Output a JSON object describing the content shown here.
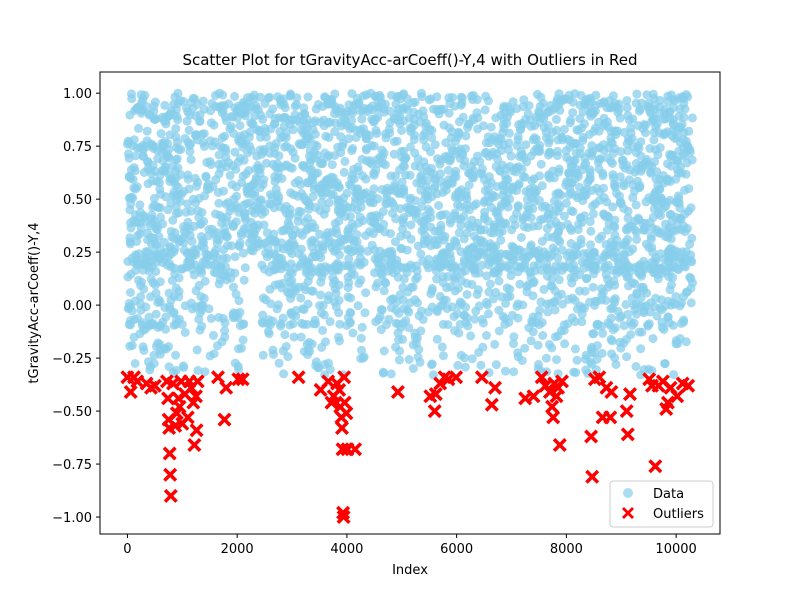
{
  "chart_data": {
    "type": "scatter",
    "title": "Scatter Plot for tGravityAcc-arCoeff()-Y,4 with Outliers in Red",
    "xlabel": "Index",
    "ylabel": "tGravityAcc-arCoeff()-Y,4",
    "xlim": [
      -500,
      10800
    ],
    "ylim": [
      -1.08,
      1.1
    ],
    "xticks": [
      0,
      2000,
      4000,
      6000,
      8000,
      10000
    ],
    "xtick_labels": [
      "0",
      "2000",
      "4000",
      "6000",
      "8000",
      "10000"
    ],
    "yticks": [
      -1.0,
      -0.75,
      -0.5,
      -0.25,
      0.0,
      0.25,
      0.5,
      0.75,
      1.0
    ],
    "ytick_labels": [
      "−1.00",
      "−0.75",
      "−0.50",
      "−0.25",
      "0.00",
      "0.25",
      "0.50",
      "0.75",
      "1.00"
    ],
    "grid": false,
    "legend_position": "lower-right",
    "series": [
      {
        "name": "Data",
        "color": "#87ceeb",
        "marker": "circle",
        "x_range": [
          0,
          10299
        ],
        "y_range": [
          -0.33,
          1.0
        ],
        "description_points": "dense band of ~10000 points, mostly between 0.0 and 1.0, sparser tail down to about -0.33"
      },
      {
        "name": "Outliers",
        "color": "#ff0000",
        "marker": "x",
        "points": [
          [
            0,
            -0.34
          ],
          [
            60,
            -0.41
          ],
          [
            120,
            -0.34
          ],
          [
            180,
            -0.36
          ],
          [
            350,
            -0.37
          ],
          [
            430,
            -0.39
          ],
          [
            500,
            -0.38
          ],
          [
            720,
            -0.36
          ],
          [
            740,
            -0.44
          ],
          [
            750,
            -0.54
          ],
          [
            760,
            -0.58
          ],
          [
            770,
            -0.7
          ],
          [
            780,
            -0.8
          ],
          [
            790,
            -0.9
          ],
          [
            830,
            -0.37
          ],
          [
            870,
            -0.57
          ],
          [
            900,
            -0.51
          ],
          [
            930,
            -0.44
          ],
          [
            950,
            -0.48
          ],
          [
            980,
            -0.36
          ],
          [
            1000,
            -0.56
          ],
          [
            1050,
            -0.42
          ],
          [
            1100,
            -0.53
          ],
          [
            1130,
            -0.36
          ],
          [
            1160,
            -0.39
          ],
          [
            1200,
            -0.46
          ],
          [
            1220,
            -0.66
          ],
          [
            1250,
            -0.43
          ],
          [
            1260,
            -0.59
          ],
          [
            1280,
            -0.36
          ],
          [
            1650,
            -0.34
          ],
          [
            1770,
            -0.54
          ],
          [
            1800,
            -0.39
          ],
          [
            2020,
            -0.35
          ],
          [
            2100,
            -0.35
          ],
          [
            3120,
            -0.34
          ],
          [
            3520,
            -0.4
          ],
          [
            3660,
            -0.36
          ],
          [
            3720,
            -0.46
          ],
          [
            3760,
            -0.43
          ],
          [
            3820,
            -0.37
          ],
          [
            3860,
            -0.4
          ],
          [
            3880,
            -0.48
          ],
          [
            3900,
            -0.53
          ],
          [
            3910,
            -0.58
          ],
          [
            3920,
            -0.68
          ],
          [
            3930,
            -0.98
          ],
          [
            3940,
            -1.0
          ],
          [
            3950,
            -0.34
          ],
          [
            3960,
            -0.46
          ],
          [
            3990,
            -0.51
          ],
          [
            4010,
            -0.68
          ],
          [
            4150,
            -0.68
          ],
          [
            4930,
            -0.41
          ],
          [
            5520,
            -0.43
          ],
          [
            5600,
            -0.5
          ],
          [
            5620,
            -0.42
          ],
          [
            5700,
            -0.37
          ],
          [
            5780,
            -0.34
          ],
          [
            5850,
            -0.35
          ],
          [
            5990,
            -0.34
          ],
          [
            6460,
            -0.34
          ],
          [
            6640,
            -0.47
          ],
          [
            6700,
            -0.39
          ],
          [
            7250,
            -0.44
          ],
          [
            7400,
            -0.43
          ],
          [
            7550,
            -0.34
          ],
          [
            7620,
            -0.38
          ],
          [
            7700,
            -0.41
          ],
          [
            7740,
            -0.48
          ],
          [
            7760,
            -0.53
          ],
          [
            7780,
            -0.37
          ],
          [
            7820,
            -0.43
          ],
          [
            7850,
            -0.39
          ],
          [
            7880,
            -0.66
          ],
          [
            7920,
            -0.36
          ],
          [
            8450,
            -0.62
          ],
          [
            8470,
            -0.81
          ],
          [
            8520,
            -0.35
          ],
          [
            8600,
            -0.34
          ],
          [
            8660,
            -0.53
          ],
          [
            8730,
            -0.39
          ],
          [
            8800,
            -0.53
          ],
          [
            8820,
            -0.41
          ],
          [
            9100,
            -0.5
          ],
          [
            9120,
            -0.61
          ],
          [
            9160,
            -0.42
          ],
          [
            9510,
            -0.35
          ],
          [
            9560,
            -0.38
          ],
          [
            9620,
            -0.76
          ],
          [
            9680,
            -0.38
          ],
          [
            9760,
            -0.36
          ],
          [
            9820,
            -0.49
          ],
          [
            9850,
            -0.46
          ],
          [
            9900,
            -0.39
          ],
          [
            10020,
            -0.43
          ],
          [
            10120,
            -0.37
          ],
          [
            10220,
            -0.38
          ]
        ]
      }
    ]
  }
}
